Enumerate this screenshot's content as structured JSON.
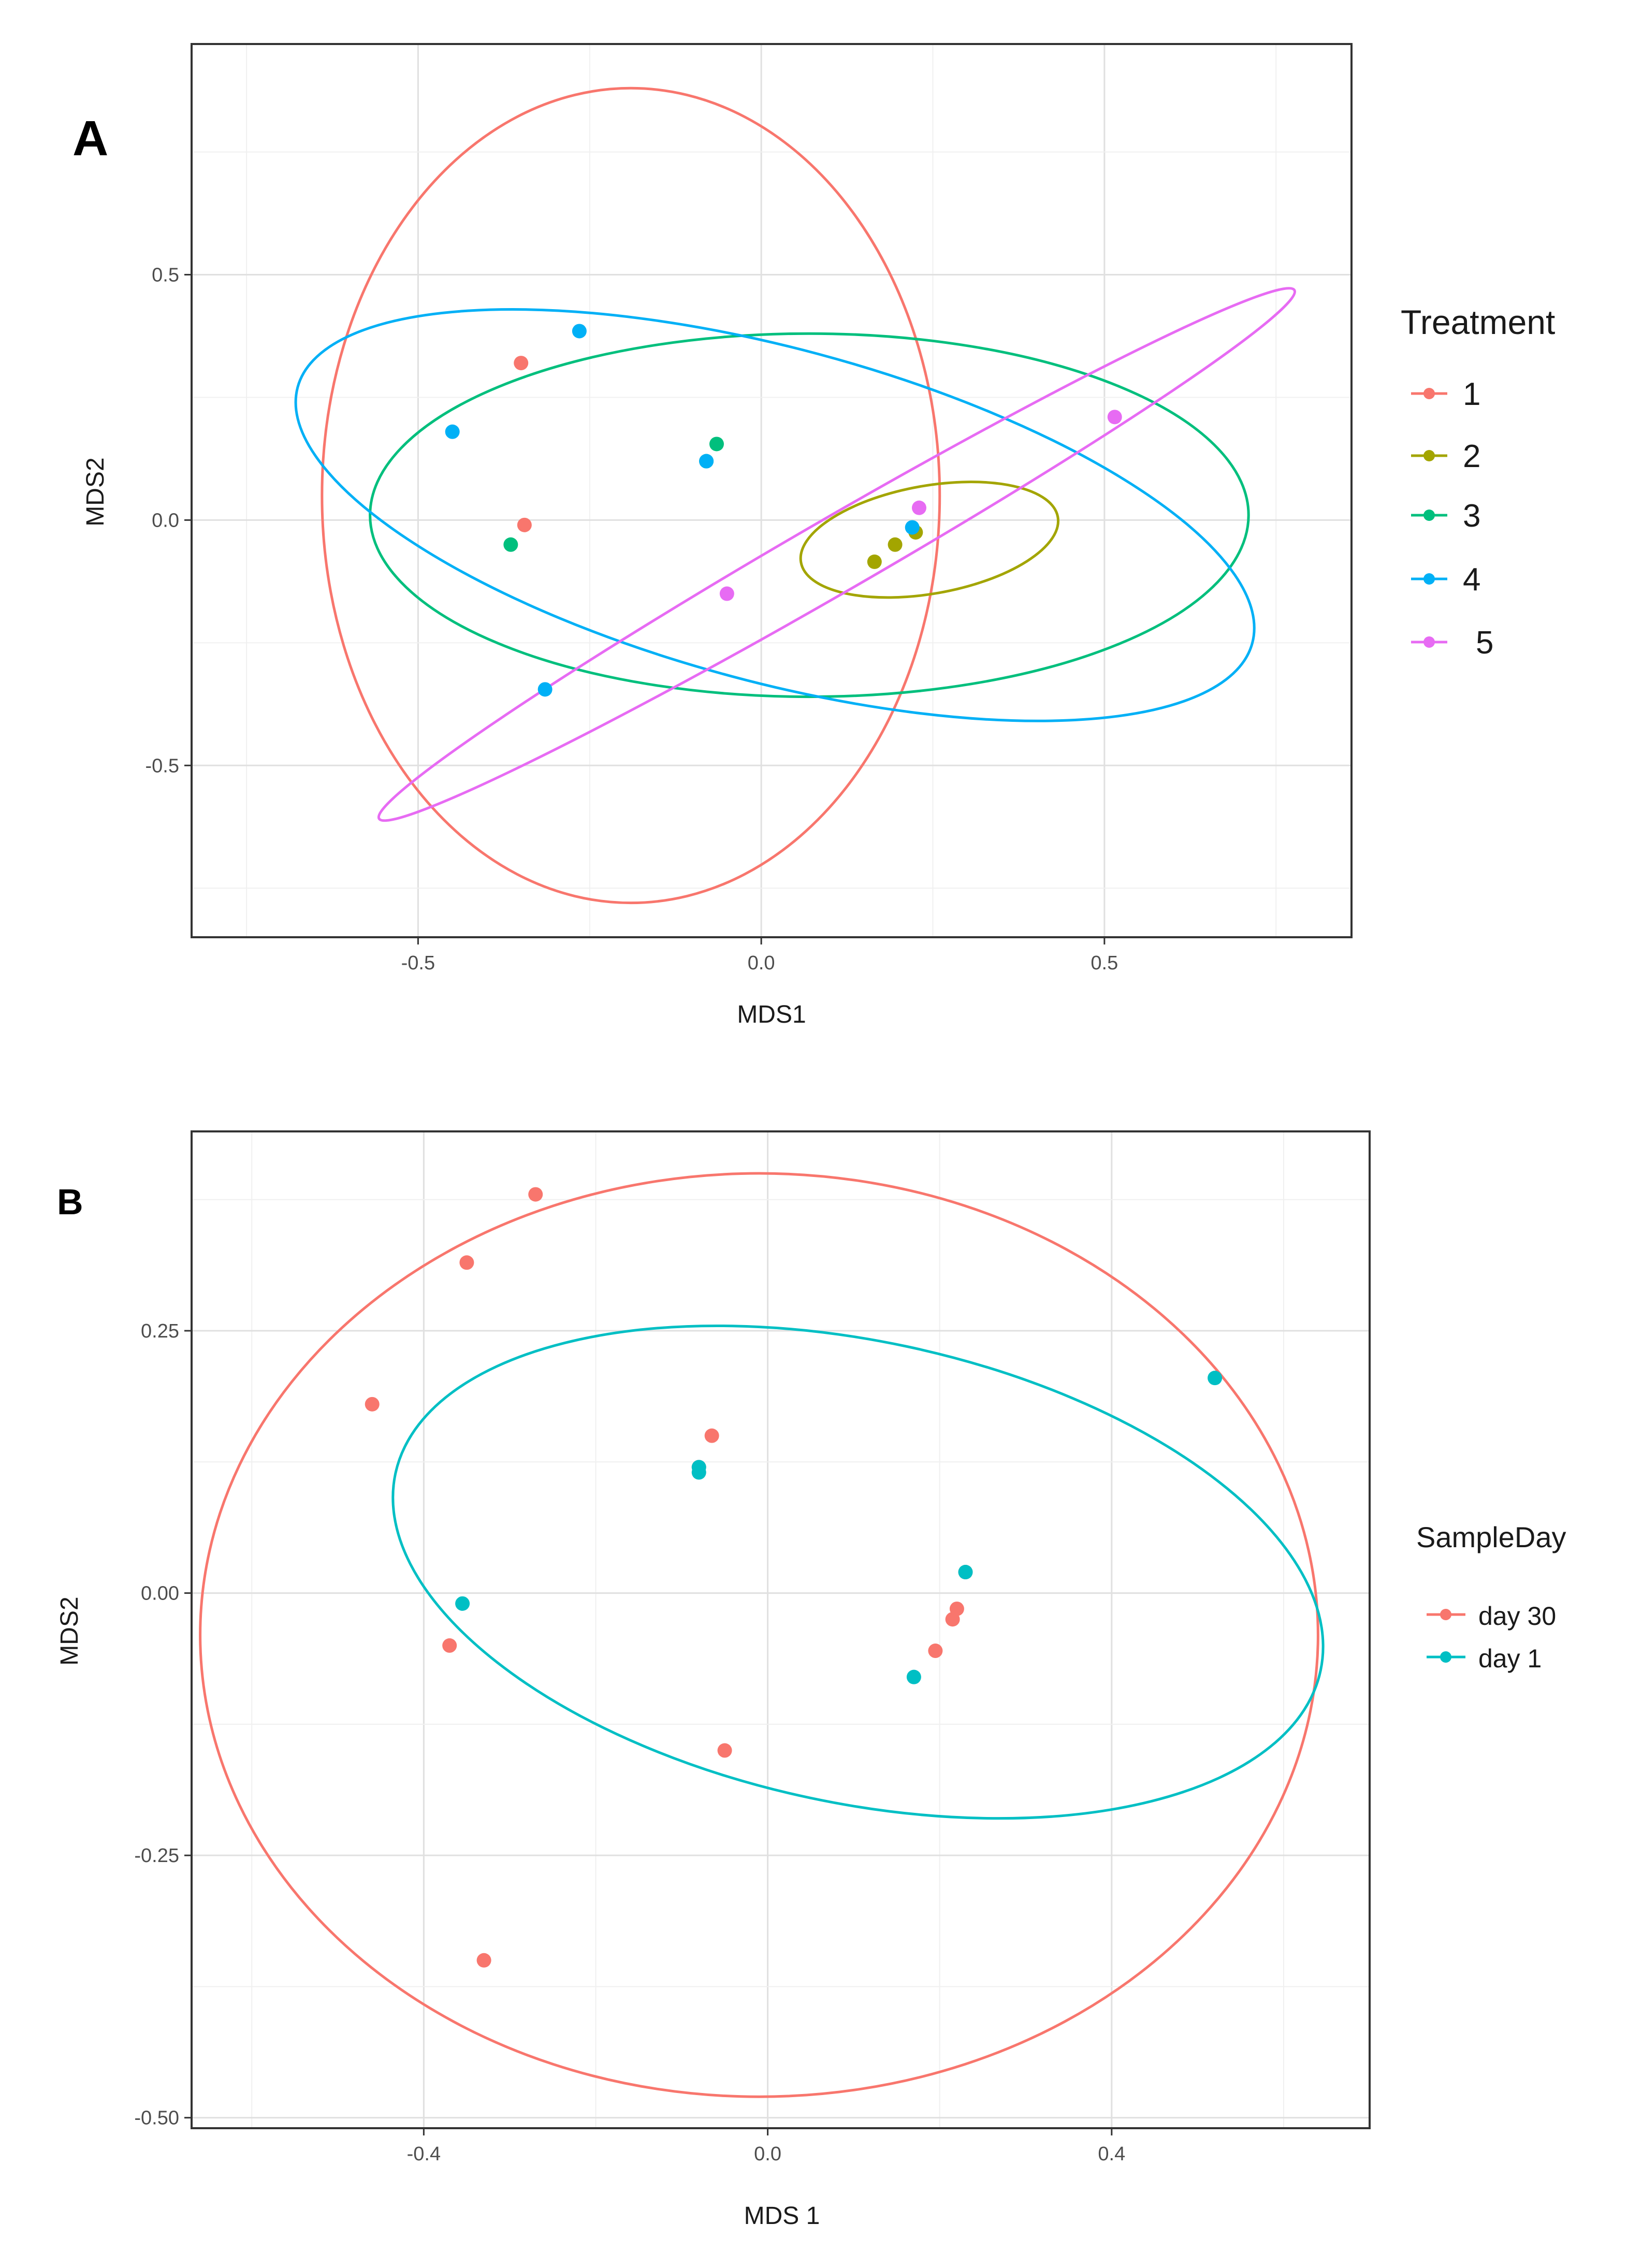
{
  "chart_data": [
    {
      "panel_label": "A",
      "type": "scatter",
      "xlabel": "MDS1",
      "ylabel": "MDS2",
      "xlim": [
        -0.83,
        0.86
      ],
      "ylim": [
        -0.85,
        0.97
      ],
      "xticks": [
        -0.5,
        0.0,
        0.5
      ],
      "xtick_labels": [
        "-0.5",
        "0.0",
        "0.5"
      ],
      "yticks": [
        -0.5,
        0.0,
        0.5
      ],
      "ytick_labels": [
        "-0.5",
        "0.0",
        "0.5"
      ],
      "grid": true,
      "legend": {
        "title": "Treatment",
        "position": "right",
        "entries": [
          {
            "label": "1",
            "color": "#F8766D"
          },
          {
            "label": "2",
            "color": "#A3A500"
          },
          {
            "label": "3",
            "color": "#00BF7D"
          },
          {
            "label": "4",
            "color": "#00B0F6"
          },
          {
            "label": "5",
            "color": "#E76BF3"
          }
        ]
      },
      "series": [
        {
          "name": "1",
          "color": "#F8766D",
          "points": [
            [
              -0.35,
              0.32
            ],
            [
              -0.345,
              -0.01
            ]
          ],
          "ellipse": {
            "cx": -0.19,
            "cy": 0.05,
            "rx": 0.45,
            "ry": 0.83,
            "angle": 0
          }
        },
        {
          "name": "2",
          "color": "#A3A500",
          "points": [
            [
              0.165,
              -0.085
            ],
            [
              0.195,
              -0.05
            ],
            [
              0.225,
              -0.025
            ]
          ],
          "ellipse": {
            "cx": 0.245,
            "cy": -0.04,
            "rx": 0.19,
            "ry": 0.11,
            "angle": 10
          }
        },
        {
          "name": "3",
          "color": "#00BF7D",
          "points": [
            [
              -0.365,
              -0.05
            ],
            [
              -0.065,
              0.155
            ],
            [
              -0.08,
              0.12
            ]
          ],
          "ellipse": {
            "cx": 0.07,
            "cy": 0.01,
            "rx": 0.64,
            "ry": 0.37,
            "angle": 0
          }
        },
        {
          "name": "4",
          "color": "#00B0F6",
          "points": [
            [
              -0.265,
              0.385
            ],
            [
              -0.45,
              0.18
            ],
            [
              -0.315,
              -0.345
            ],
            [
              -0.08,
              0.12
            ],
            [
              0.22,
              -0.015
            ]
          ],
          "ellipse": {
            "cx": 0.02,
            "cy": 0.01,
            "rx": 0.72,
            "ry": 0.34,
            "angle": -15
          }
        },
        {
          "name": "5",
          "color": "#E76BF3",
          "points": [
            [
              0.515,
              0.21
            ],
            [
              0.23,
              0.025
            ],
            [
              -0.05,
              -0.15
            ]
          ],
          "ellipse": {
            "cx": 0.11,
            "cy": -0.07,
            "rx": 0.77,
            "ry": 0.075,
            "angle": 30
          }
        }
      ]
    },
    {
      "panel_label": "B",
      "type": "scatter",
      "xlabel": "MDS 1",
      "ylabel": "MDS2",
      "xlim": [
        -0.67,
        0.7
      ],
      "ylim": [
        -0.51,
        0.44
      ],
      "xticks": [
        -0.4,
        0.0,
        0.4
      ],
      "xtick_labels": [
        "-0.4",
        "0.0",
        "0.4"
      ],
      "yticks": [
        0.25,
        0.0,
        -0.25,
        -0.5
      ],
      "ytick_labels": [
        "0.25",
        "0.00",
        "-0.25",
        "-0.50"
      ],
      "grid": true,
      "legend": {
        "title": "SampleDay",
        "position": "right",
        "entries": [
          {
            "label": "day 30",
            "color": "#F8766D"
          },
          {
            "label": "day 1",
            "color": "#00BFC4"
          }
        ]
      },
      "series": [
        {
          "name": "day 30",
          "color": "#F8766D",
          "points": [
            [
              -0.27,
              0.38
            ],
            [
              -0.35,
              0.315
            ],
            [
              -0.46,
              0.18
            ],
            [
              -0.065,
              0.15
            ],
            [
              -0.08,
              0.12
            ],
            [
              -0.37,
              -0.05
            ],
            [
              -0.05,
              -0.15
            ],
            [
              -0.33,
              -0.35
            ],
            [
              0.195,
              -0.055
            ],
            [
              0.215,
              -0.025
            ],
            [
              0.22,
              -0.015
            ],
            [
              0.23,
              0.02
            ]
          ],
          "ellipse": {
            "cx": -0.01,
            "cy": -0.04,
            "rx": 0.65,
            "ry": 0.44,
            "angle": 0
          }
        },
        {
          "name": "day 1",
          "color": "#00BFC4",
          "points": [
            [
              -0.355,
              -0.01
            ],
            [
              -0.08,
              0.12
            ],
            [
              -0.08,
              0.115
            ],
            [
              0.17,
              -0.08
            ],
            [
              0.23,
              0.02
            ],
            [
              0.52,
              0.205
            ]
          ],
          "ellipse": {
            "cx": 0.105,
            "cy": 0.02,
            "rx": 0.55,
            "ry": 0.22,
            "angle": -12
          }
        }
      ]
    }
  ]
}
